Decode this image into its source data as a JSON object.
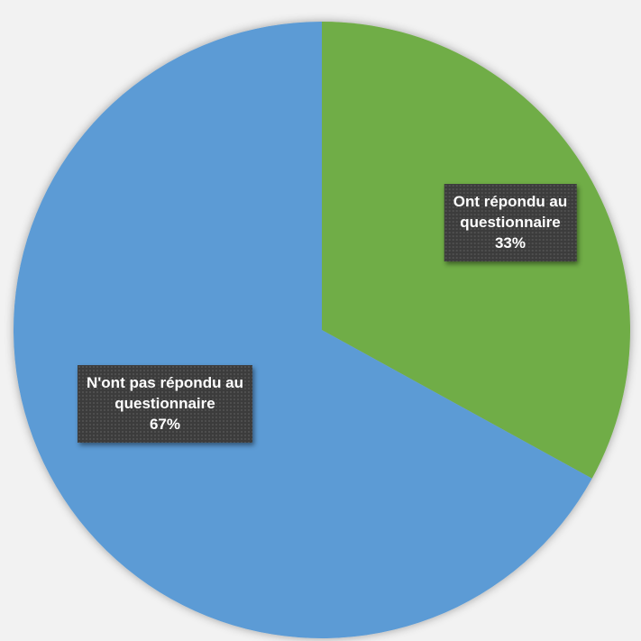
{
  "chart_data": {
    "type": "pie",
    "title": "",
    "slices": [
      {
        "line1": "Ont répondu au",
        "line2": "questionnaire",
        "value": 33,
        "percent_label": "33%",
        "color": "#70ad47"
      },
      {
        "line1": "N'ont pas répondu au",
        "line2": "questionnaire",
        "value": 67,
        "percent_label": "67%",
        "color": "#5b9bd5"
      }
    ],
    "start_angle": "12 o'clock",
    "direction": "clockwise",
    "legend": "none"
  }
}
